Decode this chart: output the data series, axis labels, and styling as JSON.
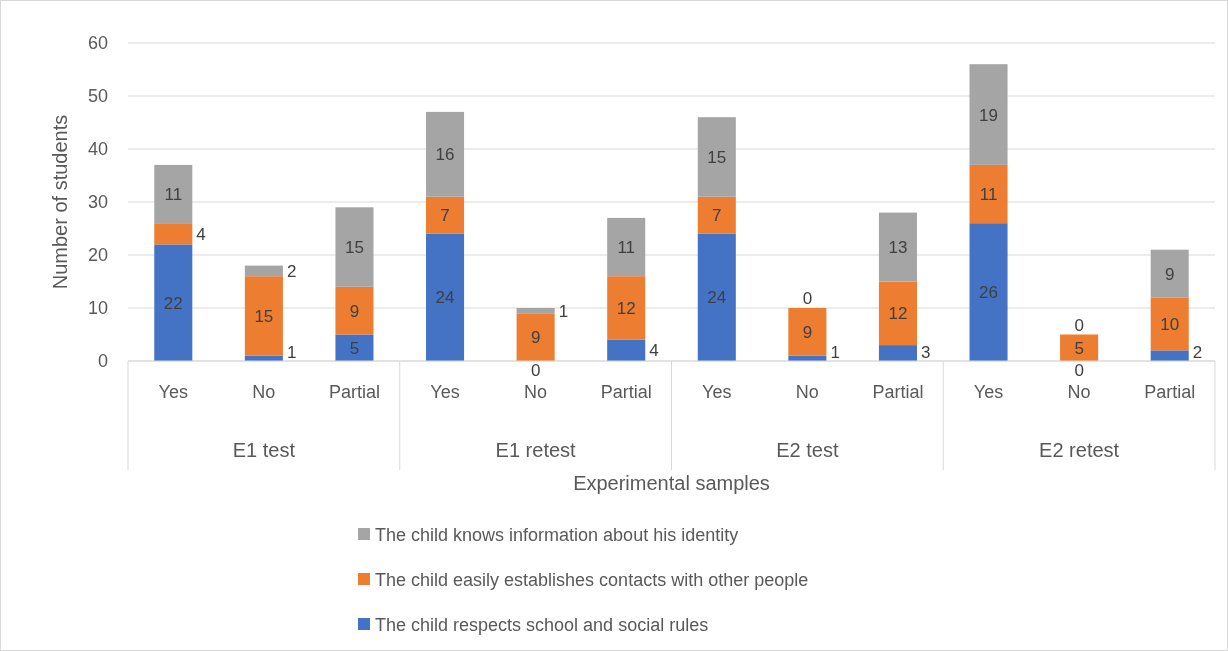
{
  "chart_data": {
    "type": "bar",
    "stacked": true,
    "xlabel": "Experimental samples",
    "ylabel": "Number of students",
    "categories": [
      "Yes",
      "No",
      "Partial",
      "Yes",
      "No",
      "Partial",
      "Yes",
      "No",
      "Partial",
      "Yes",
      "No",
      "Partial"
    ],
    "annotations": [
      "E1 test",
      "E1 retest",
      "E2 test",
      "E2 retest"
    ],
    "series": [
      {
        "name": "The child respects school and social rules",
        "color": "#4472c4",
        "values": [
          22,
          1,
          5,
          24,
          0,
          4,
          24,
          1,
          3,
          26,
          0,
          2
        ]
      },
      {
        "name": "The child easily establishes contacts with other people",
        "color": "#ed7d31",
        "values": [
          4,
          15,
          9,
          7,
          9,
          12,
          7,
          9,
          12,
          11,
          5,
          10
        ]
      },
      {
        "name": "The child knows information about his identity",
        "color": "#a5a5a5",
        "values": [
          11,
          2,
          15,
          16,
          1,
          11,
          15,
          0,
          13,
          19,
          0,
          9
        ]
      }
    ],
    "ylim": [
      0,
      60
    ],
    "yticks": [
      0,
      10,
      20,
      30,
      40,
      50,
      60
    ],
    "grid": "y",
    "legend": "bottom",
    "data_labels": true
  }
}
